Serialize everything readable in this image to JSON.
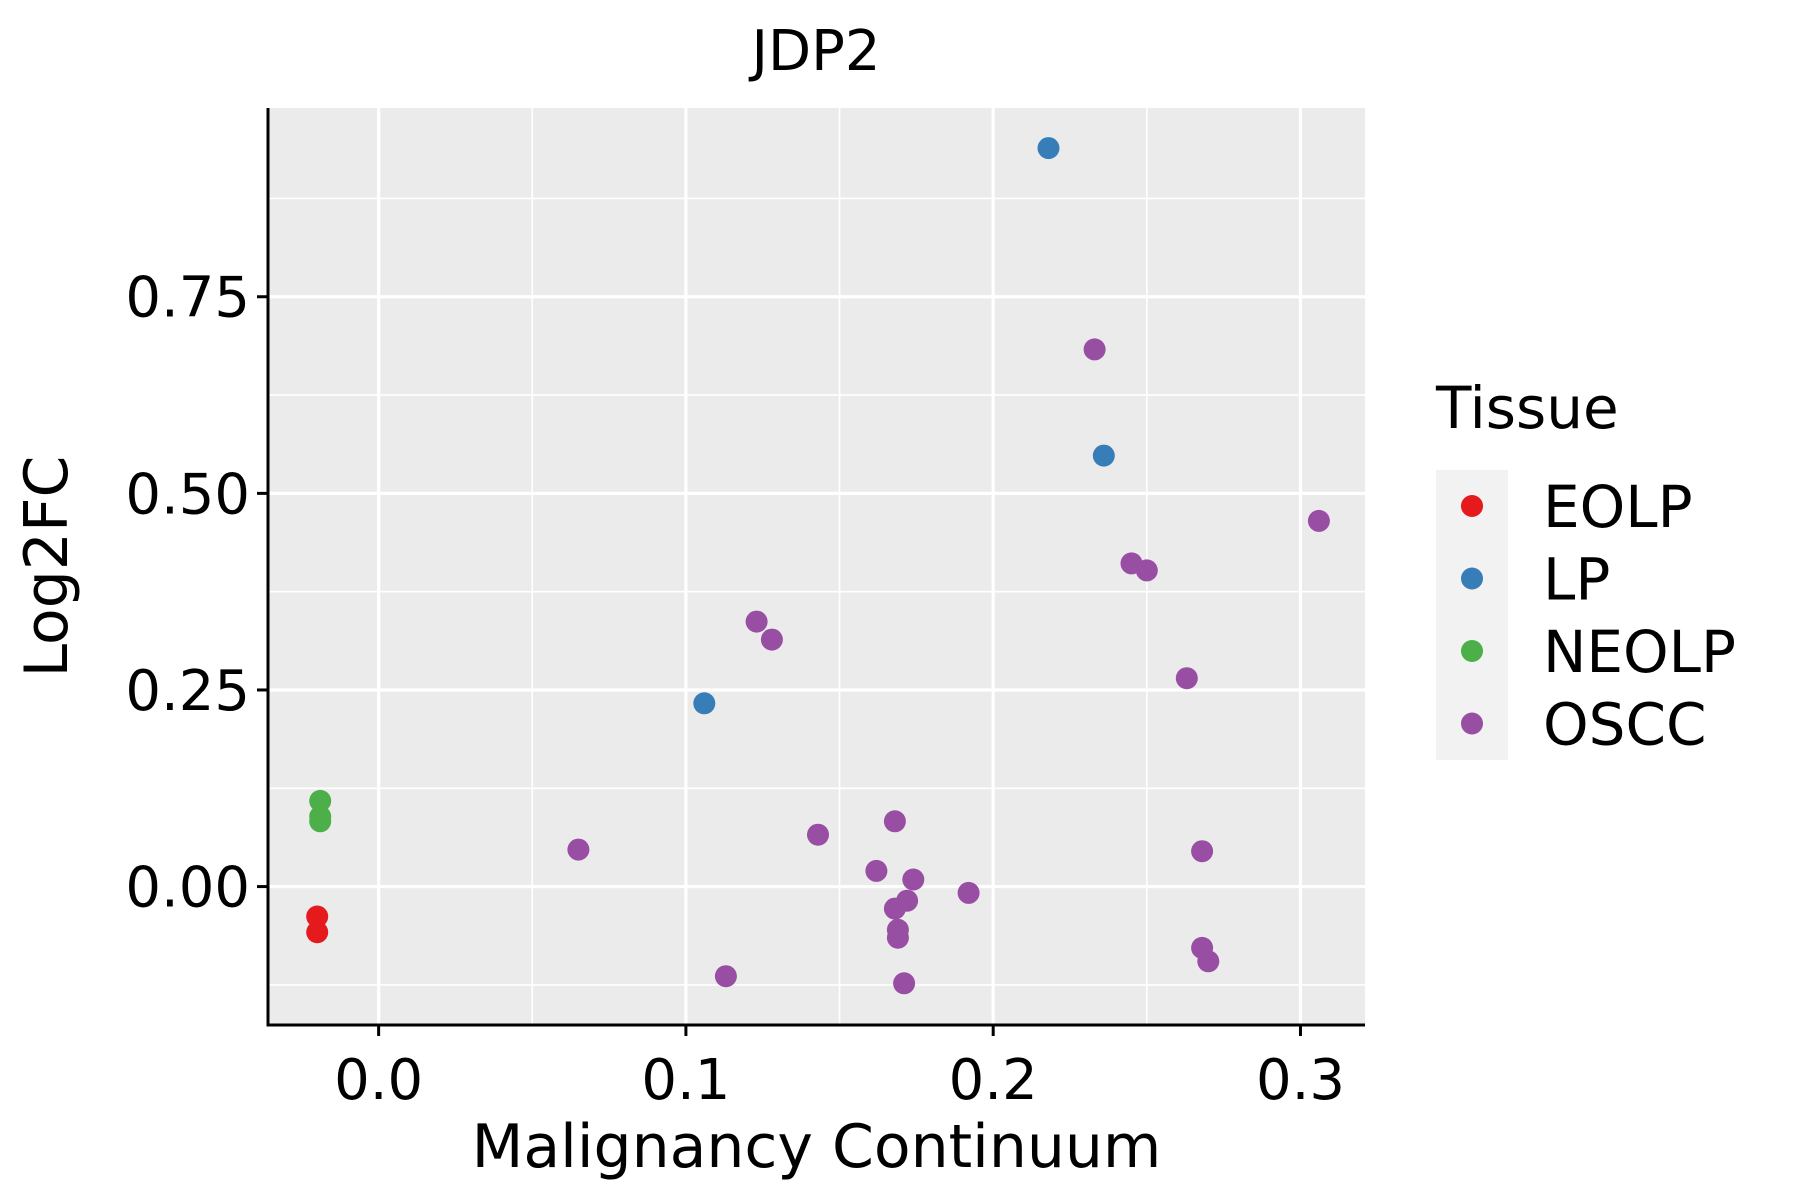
{
  "chart_data": {
    "type": "scatter",
    "title": "JDP2",
    "xlabel": "Malignancy Continuum",
    "ylabel": "Log2FC",
    "xlim": [
      -0.036,
      0.321
    ],
    "ylim": [
      -0.176,
      0.99
    ],
    "x_ticks": [
      0.0,
      0.1,
      0.2,
      0.3
    ],
    "x_tick_labels": [
      "0.0",
      "0.1",
      "0.2",
      "0.3"
    ],
    "y_ticks": [
      0.0,
      0.25,
      0.5,
      0.75
    ],
    "y_tick_labels": [
      "0.00",
      "0.25",
      "0.50",
      "0.75"
    ],
    "grid": true,
    "legend": {
      "title": "Tissue",
      "position": "right",
      "entries": [
        {
          "name": "EOLP",
          "color": "#E41A1C"
        },
        {
          "name": "LP",
          "color": "#377EB8"
        },
        {
          "name": "NEOLP",
          "color": "#4DAF4A"
        },
        {
          "name": "OSCC",
          "color": "#984EA3"
        }
      ]
    },
    "series": [
      {
        "name": "EOLP",
        "color": "#E41A1C",
        "points": [
          {
            "x": -0.02,
            "y": -0.038
          },
          {
            "x": -0.02,
            "y": -0.058
          }
        ]
      },
      {
        "name": "LP",
        "color": "#377EB8",
        "points": [
          {
            "x": 0.218,
            "y": 0.939
          },
          {
            "x": 0.236,
            "y": 0.548
          },
          {
            "x": 0.106,
            "y": 0.233
          }
        ]
      },
      {
        "name": "NEOLP",
        "color": "#4DAF4A",
        "points": [
          {
            "x": -0.019,
            "y": 0.109
          },
          {
            "x": -0.019,
            "y": 0.089
          },
          {
            "x": -0.019,
            "y": 0.083
          }
        ]
      },
      {
        "name": "OSCC",
        "color": "#984EA3",
        "points": [
          {
            "x": 0.233,
            "y": 0.683
          },
          {
            "x": 0.306,
            "y": 0.465
          },
          {
            "x": 0.245,
            "y": 0.411
          },
          {
            "x": 0.25,
            "y": 0.402
          },
          {
            "x": 0.123,
            "y": 0.337
          },
          {
            "x": 0.128,
            "y": 0.314
          },
          {
            "x": 0.263,
            "y": 0.265
          },
          {
            "x": 0.168,
            "y": 0.083
          },
          {
            "x": 0.143,
            "y": 0.066
          },
          {
            "x": 0.065,
            "y": 0.047
          },
          {
            "x": 0.268,
            "y": 0.045
          },
          {
            "x": 0.162,
            "y": 0.02
          },
          {
            "x": 0.174,
            "y": 0.009
          },
          {
            "x": 0.192,
            "y": -0.008
          },
          {
            "x": 0.172,
            "y": -0.018
          },
          {
            "x": 0.168,
            "y": -0.028
          },
          {
            "x": 0.169,
            "y": -0.055
          },
          {
            "x": 0.169,
            "y": -0.065
          },
          {
            "x": 0.268,
            "y": -0.078
          },
          {
            "x": 0.27,
            "y": -0.095
          },
          {
            "x": 0.113,
            "y": -0.114
          },
          {
            "x": 0.171,
            "y": -0.123
          }
        ]
      }
    ]
  }
}
